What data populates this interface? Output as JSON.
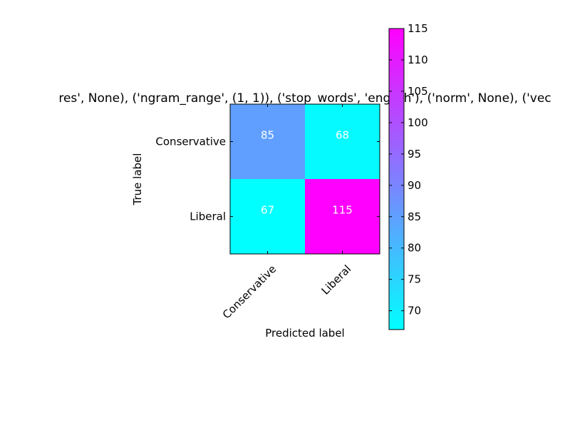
{
  "chart_data": {
    "type": "heatmap",
    "title": "res', None), ('ngram_range', (1, 1)), ('stop_words', 'english'), ('norm', None), ('vec",
    "xlabel": "Predicted label",
    "ylabel": "True label",
    "x_categories": [
      "Conservative",
      "Liberal"
    ],
    "y_categories": [
      "Conservative",
      "Liberal"
    ],
    "values": [
      [
        85,
        68
      ],
      [
        67,
        115
      ]
    ],
    "colormap": "cool",
    "colormap_colors": [
      "#00ffff",
      "#ff00ff"
    ],
    "value_text_color": "#ffffff",
    "colorbar": {
      "range": [
        67,
        115
      ],
      "ticks": [
        70,
        75,
        80,
        85,
        90,
        95,
        100,
        105,
        110,
        115
      ]
    }
  }
}
